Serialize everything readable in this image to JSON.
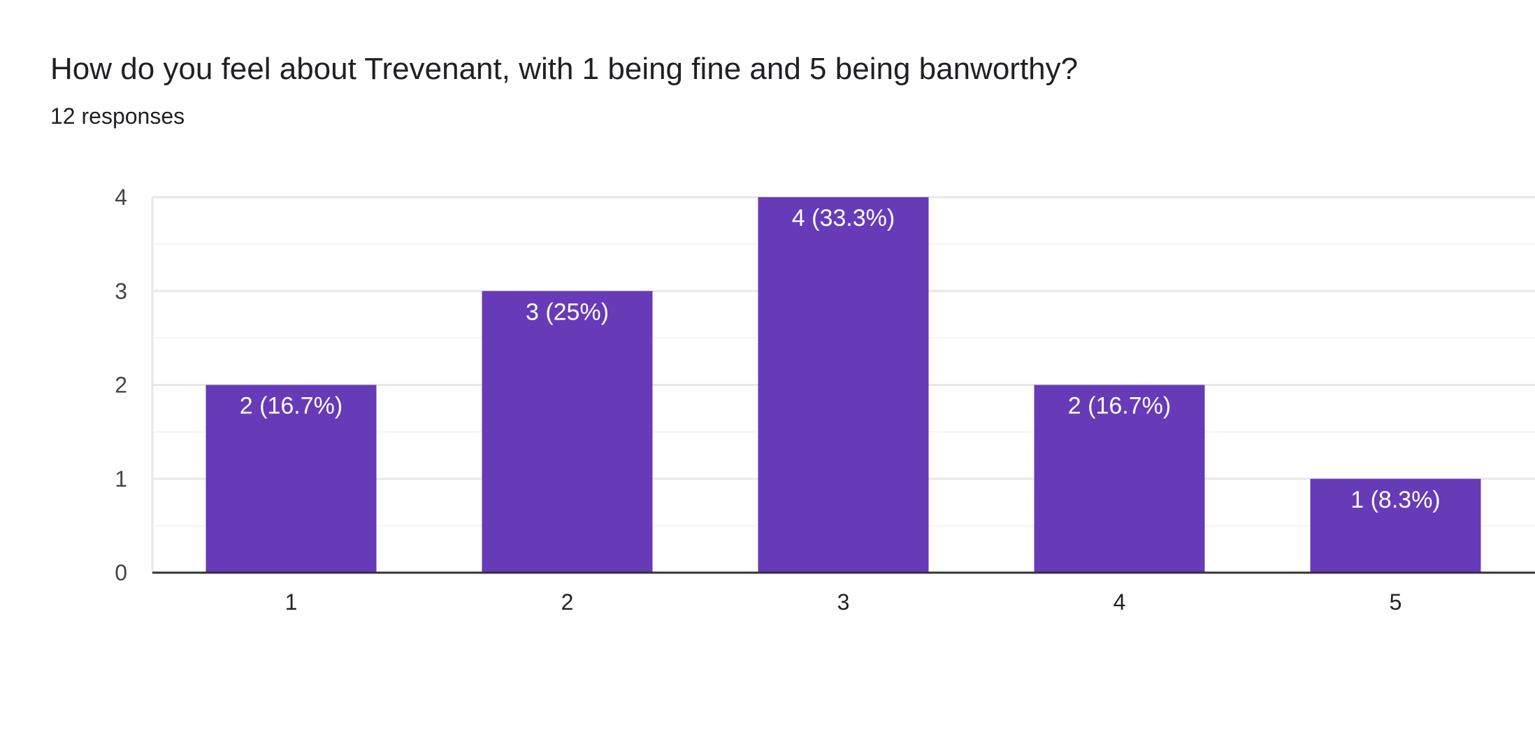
{
  "question": {
    "title": "How do you feel about Trevenant, with 1 being fine and 5 being banworthy?",
    "responses": "12 responses"
  },
  "colors": {
    "bar": "#673ab7",
    "grid_major": "#e8e8e8",
    "grid_minor": "#f3f3f3",
    "axis": "#333333"
  },
  "chart_data": {
    "type": "bar",
    "categories": [
      "1",
      "2",
      "3",
      "4",
      "5"
    ],
    "values": [
      2,
      3,
      4,
      2,
      1
    ],
    "data_labels": [
      "2 (16.7%)",
      "3 (25%)",
      "4 (33.3%)",
      "2 (16.7%)",
      "1 (8.3%)"
    ],
    "title": "How do you feel about Trevenant, with 1 being fine and 5 being banworthy?",
    "subtitle": "12 responses",
    "xlabel": "",
    "ylabel": "",
    "ylim": [
      0,
      4
    ],
    "yticks": [
      "0",
      "1",
      "2",
      "3",
      "4"
    ],
    "grid": true,
    "legend": "none"
  }
}
